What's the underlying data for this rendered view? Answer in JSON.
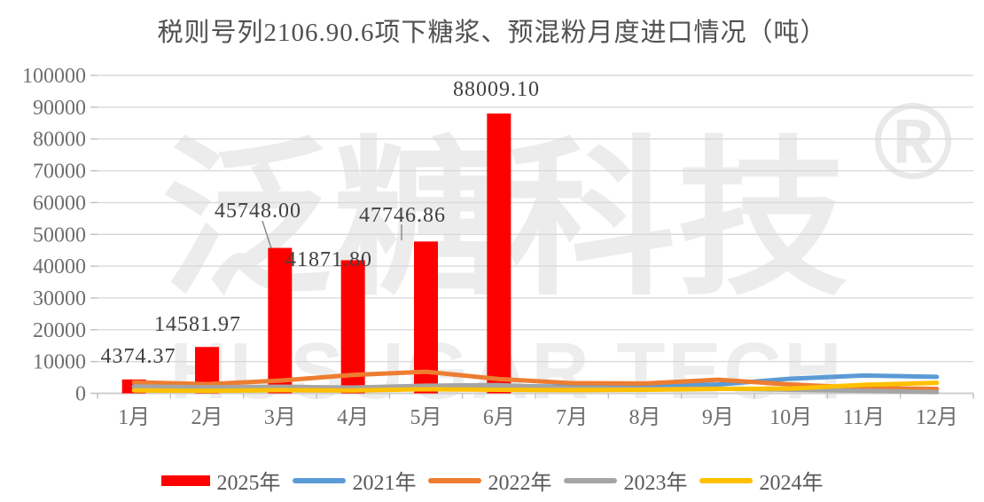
{
  "title": "税则号列2106.90.6项下糖浆、预混粉月度进口情况（吨）",
  "watermark": {
    "cjk": "泛糖科技",
    "latin": "HUSUGAR TECH",
    "registered": "®"
  },
  "chart_data": {
    "type": "bar+line",
    "title": "税则号列2106.90.6项下糖浆、预混粉月度进口情况（吨）",
    "categories": [
      "1月",
      "2月",
      "3月",
      "4月",
      "5月",
      "6月",
      "7月",
      "8月",
      "9月",
      "10月",
      "11月",
      "12月"
    ],
    "y_axis": {
      "min": 0,
      "max": 100000,
      "step": 10000,
      "tick_labels": [
        "0",
        "10000",
        "20000",
        "30000",
        "40000",
        "50000",
        "60000",
        "70000",
        "80000",
        "90000",
        "100000"
      ]
    },
    "grid": true,
    "legend_position": "bottom",
    "bar_series": {
      "name": "2025年",
      "color": "#FF0000",
      "values": [
        4374.37,
        14581.97,
        45748.0,
        41871.8,
        47746.86,
        88009.1
      ],
      "data_labels": [
        "4374.37",
        "14581.97",
        "45748.00",
        "41871.80",
        "47746.86",
        "88009.10"
      ]
    },
    "line_series": [
      {
        "name": "2021年",
        "color": "#5B9BD5",
        "values": [
          1800,
          1600,
          1900,
          1700,
          2200,
          2400,
          2000,
          2200,
          2800,
          4600,
          5600,
          5200
        ]
      },
      {
        "name": "2022年",
        "color": "#ED7D31",
        "values": [
          3500,
          2900,
          4000,
          5800,
          6800,
          4500,
          3200,
          3100,
          4300,
          2800,
          1700,
          1400
        ]
      },
      {
        "name": "2023年",
        "color": "#A5A5A5",
        "values": [
          2200,
          1900,
          2100,
          1800,
          2400,
          2600,
          1600,
          1400,
          1500,
          1100,
          800,
          400
        ]
      },
      {
        "name": "2024年",
        "color": "#FFC000",
        "values": [
          900,
          800,
          1000,
          900,
          1300,
          1100,
          1000,
          1100,
          1400,
          1500,
          2700,
          3300
        ]
      }
    ],
    "legend": [
      {
        "label": "2025年",
        "type": "bar",
        "color": "#FF0000"
      },
      {
        "label": "2021年",
        "type": "line",
        "color": "#5B9BD5"
      },
      {
        "label": "2022年",
        "type": "line",
        "color": "#ED7D31"
      },
      {
        "label": "2023年",
        "type": "line",
        "color": "#A5A5A5"
      },
      {
        "label": "2024年",
        "type": "line",
        "color": "#FFC000"
      }
    ]
  }
}
